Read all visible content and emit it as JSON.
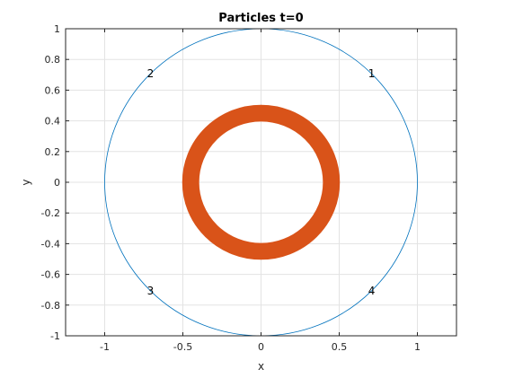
{
  "chart_data": {
    "type": "scatter",
    "title": "Particles t=0",
    "xlabel": "x",
    "ylabel": "y",
    "xlim": [
      -1.25,
      1.25
    ],
    "ylim": [
      -1,
      1
    ],
    "xticks": [
      -1,
      -0.5,
      0,
      0.5,
      1
    ],
    "xtick_labels": [
      "-1",
      "-0.5",
      "0",
      "0.5",
      "1"
    ],
    "yticks": [
      -1,
      -0.8,
      -0.6,
      -0.4,
      -0.2,
      0,
      0.2,
      0.4,
      0.6,
      0.8,
      1
    ],
    "ytick_labels": [
      "-1",
      "-0.8",
      "-0.6",
      "-0.4",
      "-0.2",
      "0",
      "0.2",
      "0.4",
      "0.6",
      "0.8",
      "1"
    ],
    "grid": true,
    "series": [
      {
        "kind": "circle",
        "center": [
          0,
          0
        ],
        "radius": 1,
        "color": "#0072BD"
      },
      {
        "kind": "annulus",
        "center": [
          0,
          0
        ],
        "inner_radius": 0.4,
        "outer_radius": 0.5,
        "color": "#D95319"
      }
    ],
    "annotations": [
      {
        "text": "1",
        "x": 0.707,
        "y": 0.707
      },
      {
        "text": "2",
        "x": -0.707,
        "y": 0.707
      },
      {
        "text": "3",
        "x": -0.707,
        "y": -0.707
      },
      {
        "text": "4",
        "x": 0.707,
        "y": -0.707
      }
    ]
  }
}
